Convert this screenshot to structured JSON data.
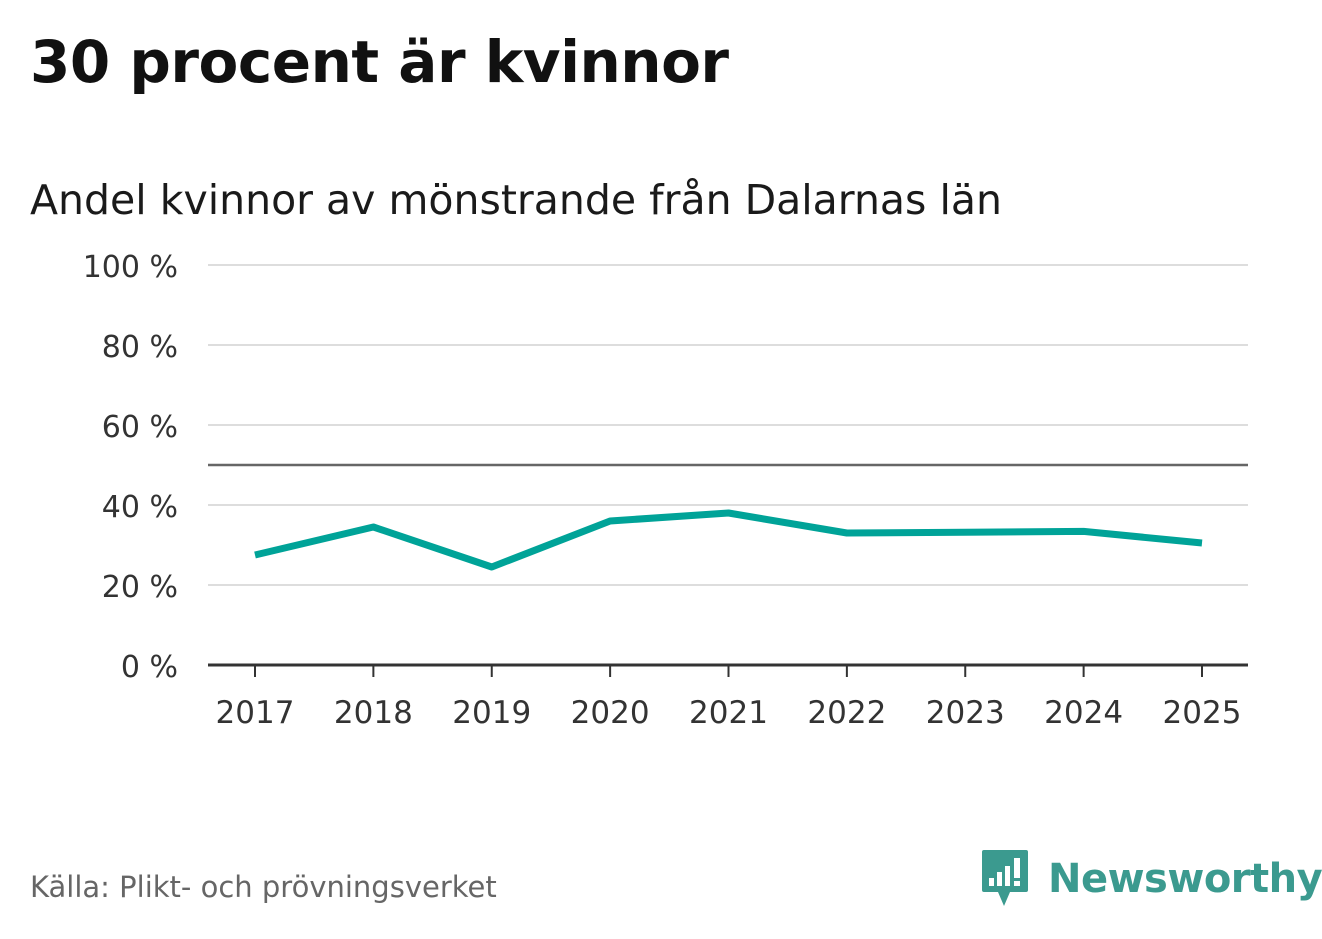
{
  "title": "30 procent är kvinnor",
  "subtitle": "Andel kvinnor av mönstrande från Dalarnas län",
  "source": "Källa: Plikt- och prövningsverket",
  "brand": {
    "name": "Newsworthy",
    "icon": "newsworthy-logo-icon",
    "color": "#3b9a8f"
  },
  "chart_data": {
    "type": "line",
    "categories": [
      "2017",
      "2018",
      "2019",
      "2020",
      "2021",
      "2022",
      "2023",
      "2024",
      "2025"
    ],
    "series": [
      {
        "values": [
          27.5,
          34.5,
          24.5,
          36,
          38,
          33,
          33.2,
          33.4,
          30.5
        ],
        "color": "#00a398"
      }
    ],
    "ylim": [
      0,
      100
    ],
    "yticks": [
      0,
      20,
      40,
      60,
      80,
      100
    ],
    "ytick_labels": [
      "0 %",
      "20 %",
      "40 %",
      "60 %",
      "80 %",
      "100 %"
    ],
    "reference_line": 50,
    "grid": true,
    "xlabel": "",
    "ylabel": ""
  }
}
